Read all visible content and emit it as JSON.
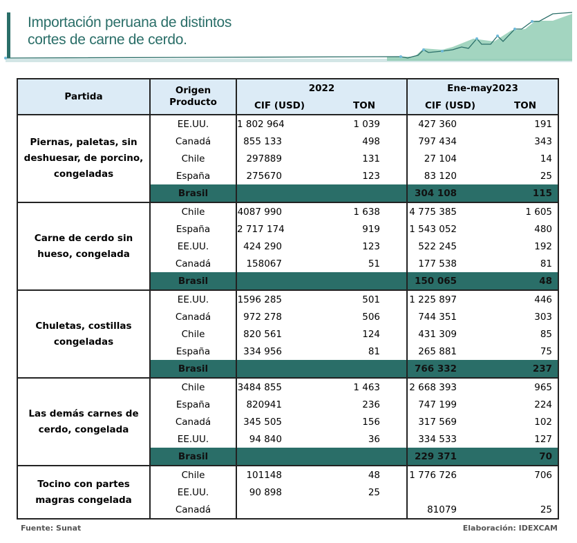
{
  "title_line1": "Importación peruana de distintos",
  "title_line2": "cortes de carne de cerdo.",
  "colors": {
    "accent": "#2a6e68",
    "header_bg": "#dcebf6"
  },
  "headers": {
    "partida": "Partida",
    "origen": "Origen Producto",
    "year1": "2022",
    "year2": "Ene-may2023",
    "cif": "CIF (USD)",
    "ton": "TON"
  },
  "groups": [
    {
      "partida": "Piernas, paletas, sin deshuesar, de porcino, congeladas",
      "rows": [
        {
          "origen": "EE.UU.",
          "cif22": "1 802 964",
          "ton22": "1 039",
          "cif23": "427 360",
          "ton23": "191"
        },
        {
          "origen": "Canadá",
          "cif22": "855 133",
          "ton22": "498",
          "cif23": "797 434",
          "ton23": "343"
        },
        {
          "origen": "Chile",
          "cif22": "297889",
          "ton22": "131",
          "cif23": "27 104",
          "ton23": "14"
        },
        {
          "origen": "España",
          "cif22": "275670",
          "ton22": "123",
          "cif23": "83 120",
          "ton23": "25"
        },
        {
          "origen": "Brasil",
          "cif22": "",
          "ton22": "",
          "cif23": "304  108",
          "ton23": "115",
          "highlight": true
        }
      ]
    },
    {
      "partida": "Carne de cerdo sin hueso, congelada",
      "rows": [
        {
          "origen": "Chile",
          "cif22": "4087 990",
          "ton22": "1 638",
          "cif23": "4 775 385",
          "ton23": "1 605"
        },
        {
          "origen": "España",
          "cif22": "2 717 174",
          "ton22": "919",
          "cif23": "1 543 052",
          "ton23": "480"
        },
        {
          "origen": "EE.UU.",
          "cif22": "424 290",
          "ton22": "123",
          "cif23": "522  245",
          "ton23": "192"
        },
        {
          "origen": "Canadá",
          "cif22": "158067",
          "ton22": "51",
          "cif23": "177 538",
          "ton23": "81"
        },
        {
          "origen": "Brasil",
          "cif22": "",
          "ton22": "",
          "cif23": "150  065",
          "ton23": "48",
          "highlight": true
        }
      ]
    },
    {
      "partida": "Chuletas, costillas congeladas",
      "rows": [
        {
          "origen": "EE.UU.",
          "cif22": "1596 285",
          "ton22": "501",
          "cif23": "1 225 897",
          "ton23": "446"
        },
        {
          "origen": "Canadá",
          "cif22": "972 278",
          "ton22": "506",
          "cif23": "744 351",
          "ton23": "303"
        },
        {
          "origen": "Chile",
          "cif22": "820 561",
          "ton22": "124",
          "cif23": "431 309",
          "ton23": "85"
        },
        {
          "origen": "España",
          "cif22": "334 956",
          "ton22": "81",
          "cif23": "265 881",
          "ton23": "75"
        },
        {
          "origen": "Brasil",
          "cif22": "",
          "ton22": "",
          "cif23": "766  332",
          "ton23": "237",
          "highlight": true
        }
      ]
    },
    {
      "partida": "Las demás carnes de cerdo, congelada",
      "rows": [
        {
          "origen": "Chile",
          "cif22": "3484 855",
          "ton22": "1 463",
          "cif23": "2 668 393",
          "ton23": "965"
        },
        {
          "origen": "España",
          "cif22": "820941",
          "ton22": "236",
          "cif23": "747 199",
          "ton23": "224"
        },
        {
          "origen": "Canadá",
          "cif22": "345 505",
          "ton22": "156",
          "cif23": "317 569",
          "ton23": "102"
        },
        {
          "origen": "EE.UU.",
          "cif22": "94 840",
          "ton22": "36",
          "cif23": "334 533",
          "ton23": "127"
        },
        {
          "origen": "Brasil",
          "cif22": "",
          "ton22": "",
          "cif23": "229 371",
          "ton23": "70",
          "highlight": true
        }
      ]
    },
    {
      "partida": "Tocino con partes magras congelada",
      "rows": [
        {
          "origen": "Chile",
          "cif22": "101148",
          "ton22": "48",
          "cif23": "1 776 726",
          "ton23": "706"
        },
        {
          "origen": "EE.UU.",
          "cif22": "90 898",
          "ton22": "25",
          "cif23": "",
          "ton23": ""
        },
        {
          "origen": "Canadá",
          "cif22": "",
          "ton22": "",
          "cif23": "81079",
          "ton23": "25"
        }
      ]
    }
  ],
  "footer": {
    "source": "Fuente: Sunat",
    "credit": "Elaboración: IDEXCAM"
  }
}
